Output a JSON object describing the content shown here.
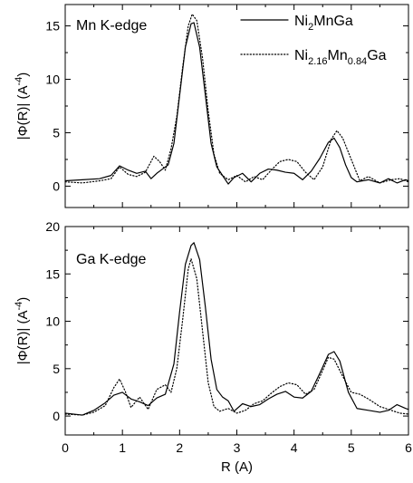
{
  "chart_data": [
    {
      "type": "line",
      "panel_label": "Mn K-edge",
      "ylabel_parts": [
        "|Φ(R)|  (A",
        "-4",
        ")"
      ],
      "xlim": [
        0,
        6
      ],
      "ylim": [
        -2,
        17
      ],
      "xticks": [
        "0",
        "1",
        "2",
        "3",
        "4",
        "5",
        "6"
      ],
      "yticks": [
        0,
        5,
        10,
        15
      ],
      "legend": [
        {
          "series": 0,
          "parts": [
            [
              "Ni",
              "n"
            ],
            [
              "2",
              "sub"
            ],
            [
              "MnGa",
              "n"
            ]
          ]
        },
        {
          "series": 1,
          "parts": [
            [
              "Ni",
              "n"
            ],
            [
              "2.16",
              "sub"
            ],
            [
              "Mn",
              "n"
            ],
            [
              "0.84",
              "sub"
            ],
            [
              "Ga",
              "n"
            ]
          ]
        }
      ],
      "series": [
        {
          "style": "solid",
          "color": "#000000",
          "x": [
            0.0,
            0.3,
            0.6,
            0.8,
            0.95,
            1.1,
            1.25,
            1.4,
            1.5,
            1.6,
            1.7,
            1.8,
            1.9,
            2.0,
            2.1,
            2.2,
            2.25,
            2.35,
            2.45,
            2.55,
            2.65,
            2.75,
            2.85,
            2.95,
            3.1,
            3.25,
            3.4,
            3.55,
            3.7,
            3.85,
            4.0,
            4.15,
            4.3,
            4.45,
            4.6,
            4.7,
            4.8,
            4.9,
            5.0,
            5.1,
            5.3,
            5.5,
            5.65,
            5.8,
            5.95,
            6.0
          ],
          "y": [
            0.5,
            0.6,
            0.7,
            1.0,
            1.9,
            1.5,
            1.2,
            1.4,
            0.7,
            1.2,
            1.6,
            2.0,
            4.0,
            8.5,
            13.0,
            15.2,
            15.3,
            13.0,
            8.5,
            4.0,
            1.8,
            1.0,
            0.2,
            0.8,
            1.2,
            0.4,
            1.2,
            1.6,
            1.5,
            1.3,
            1.2,
            0.6,
            1.4,
            2.6,
            4.1,
            4.5,
            3.6,
            2.0,
            0.8,
            0.4,
            0.6,
            0.3,
            0.7,
            0.3,
            0.6,
            0.5
          ]
        },
        {
          "style": "dotted",
          "color": "#000000",
          "x": [
            0.0,
            0.3,
            0.6,
            0.8,
            0.95,
            1.1,
            1.25,
            1.4,
            1.55,
            1.65,
            1.75,
            1.85,
            1.95,
            2.05,
            2.15,
            2.22,
            2.3,
            2.4,
            2.5,
            2.6,
            2.7,
            2.85,
            3.0,
            3.15,
            3.3,
            3.45,
            3.6,
            3.75,
            3.9,
            4.05,
            4.2,
            4.35,
            4.5,
            4.65,
            4.75,
            4.85,
            5.0,
            5.15,
            5.3,
            5.5,
            5.7,
            5.85,
            6.0
          ],
          "y": [
            0.4,
            0.3,
            0.5,
            0.7,
            1.8,
            1.1,
            0.9,
            1.3,
            2.8,
            2.3,
            1.5,
            3.5,
            6.5,
            11.0,
            15.0,
            16.1,
            15.5,
            12.0,
            7.0,
            3.0,
            1.2,
            0.6,
            1.0,
            0.4,
            0.9,
            0.6,
            1.5,
            2.3,
            2.5,
            2.3,
            1.3,
            0.6,
            1.8,
            4.4,
            5.2,
            4.5,
            2.5,
            0.5,
            0.9,
            0.3,
            0.6,
            0.7,
            0.4
          ]
        }
      ]
    },
    {
      "type": "line",
      "panel_label": "Ga K-edge",
      "ylabel_parts": [
        "|Φ(R)|  (A",
        "-4",
        ")"
      ],
      "xlabel": "R (A)",
      "xlim": [
        0,
        6
      ],
      "ylim": [
        -2,
        20
      ],
      "xticks": [
        "0",
        "1",
        "2",
        "3",
        "4",
        "5",
        "6"
      ],
      "yticks": [
        0,
        5,
        10,
        15,
        20
      ],
      "series": [
        {
          "style": "solid",
          "color": "#000000",
          "x": [
            0.0,
            0.3,
            0.5,
            0.7,
            0.85,
            1.0,
            1.15,
            1.3,
            1.45,
            1.6,
            1.75,
            1.9,
            2.0,
            2.1,
            2.2,
            2.25,
            2.35,
            2.45,
            2.55,
            2.65,
            2.75,
            2.85,
            2.95,
            3.1,
            3.25,
            3.4,
            3.55,
            3.7,
            3.85,
            4.0,
            4.15,
            4.3,
            4.45,
            4.6,
            4.7,
            4.8,
            4.95,
            5.1,
            5.3,
            5.5,
            5.65,
            5.8,
            5.95,
            6.0
          ],
          "y": [
            0.3,
            0.1,
            0.6,
            1.4,
            2.2,
            2.5,
            1.8,
            1.5,
            1.1,
            1.9,
            2.3,
            5.5,
            11.0,
            16.0,
            18.0,
            18.3,
            16.5,
            11.5,
            6.0,
            2.8,
            2.0,
            1.6,
            0.5,
            1.3,
            1.0,
            1.2,
            1.8,
            2.3,
            2.6,
            2.0,
            1.9,
            2.6,
            4.5,
            6.5,
            6.8,
            5.8,
            2.5,
            0.8,
            0.6,
            0.4,
            0.6,
            1.2,
            0.8,
            0.7
          ]
        },
        {
          "style": "dotted",
          "color": "#000000",
          "x": [
            0.0,
            0.3,
            0.5,
            0.7,
            0.85,
            0.95,
            1.05,
            1.15,
            1.3,
            1.45,
            1.6,
            1.75,
            1.85,
            1.95,
            2.05,
            2.15,
            2.2,
            2.3,
            2.4,
            2.5,
            2.6,
            2.7,
            2.85,
            3.0,
            3.15,
            3.3,
            3.45,
            3.6,
            3.75,
            3.9,
            4.05,
            4.2,
            4.35,
            4.5,
            4.6,
            4.7,
            4.85,
            5.0,
            5.15,
            5.3,
            5.5,
            5.7,
            5.85,
            6.0
          ],
          "y": [
            0.2,
            0.1,
            0.4,
            1.1,
            3.0,
            3.9,
            2.6,
            0.9,
            2.0,
            0.7,
            2.8,
            3.3,
            2.5,
            5.0,
            10.0,
            15.5,
            16.6,
            14.5,
            9.0,
            3.5,
            1.0,
            0.5,
            0.8,
            0.3,
            0.6,
            1.3,
            1.6,
            2.4,
            3.1,
            3.5,
            3.3,
            2.3,
            2.8,
            4.8,
            6.2,
            6.0,
            4.2,
            2.5,
            2.3,
            1.8,
            1.0,
            0.6,
            0.3,
            0.2
          ]
        }
      ]
    }
  ]
}
